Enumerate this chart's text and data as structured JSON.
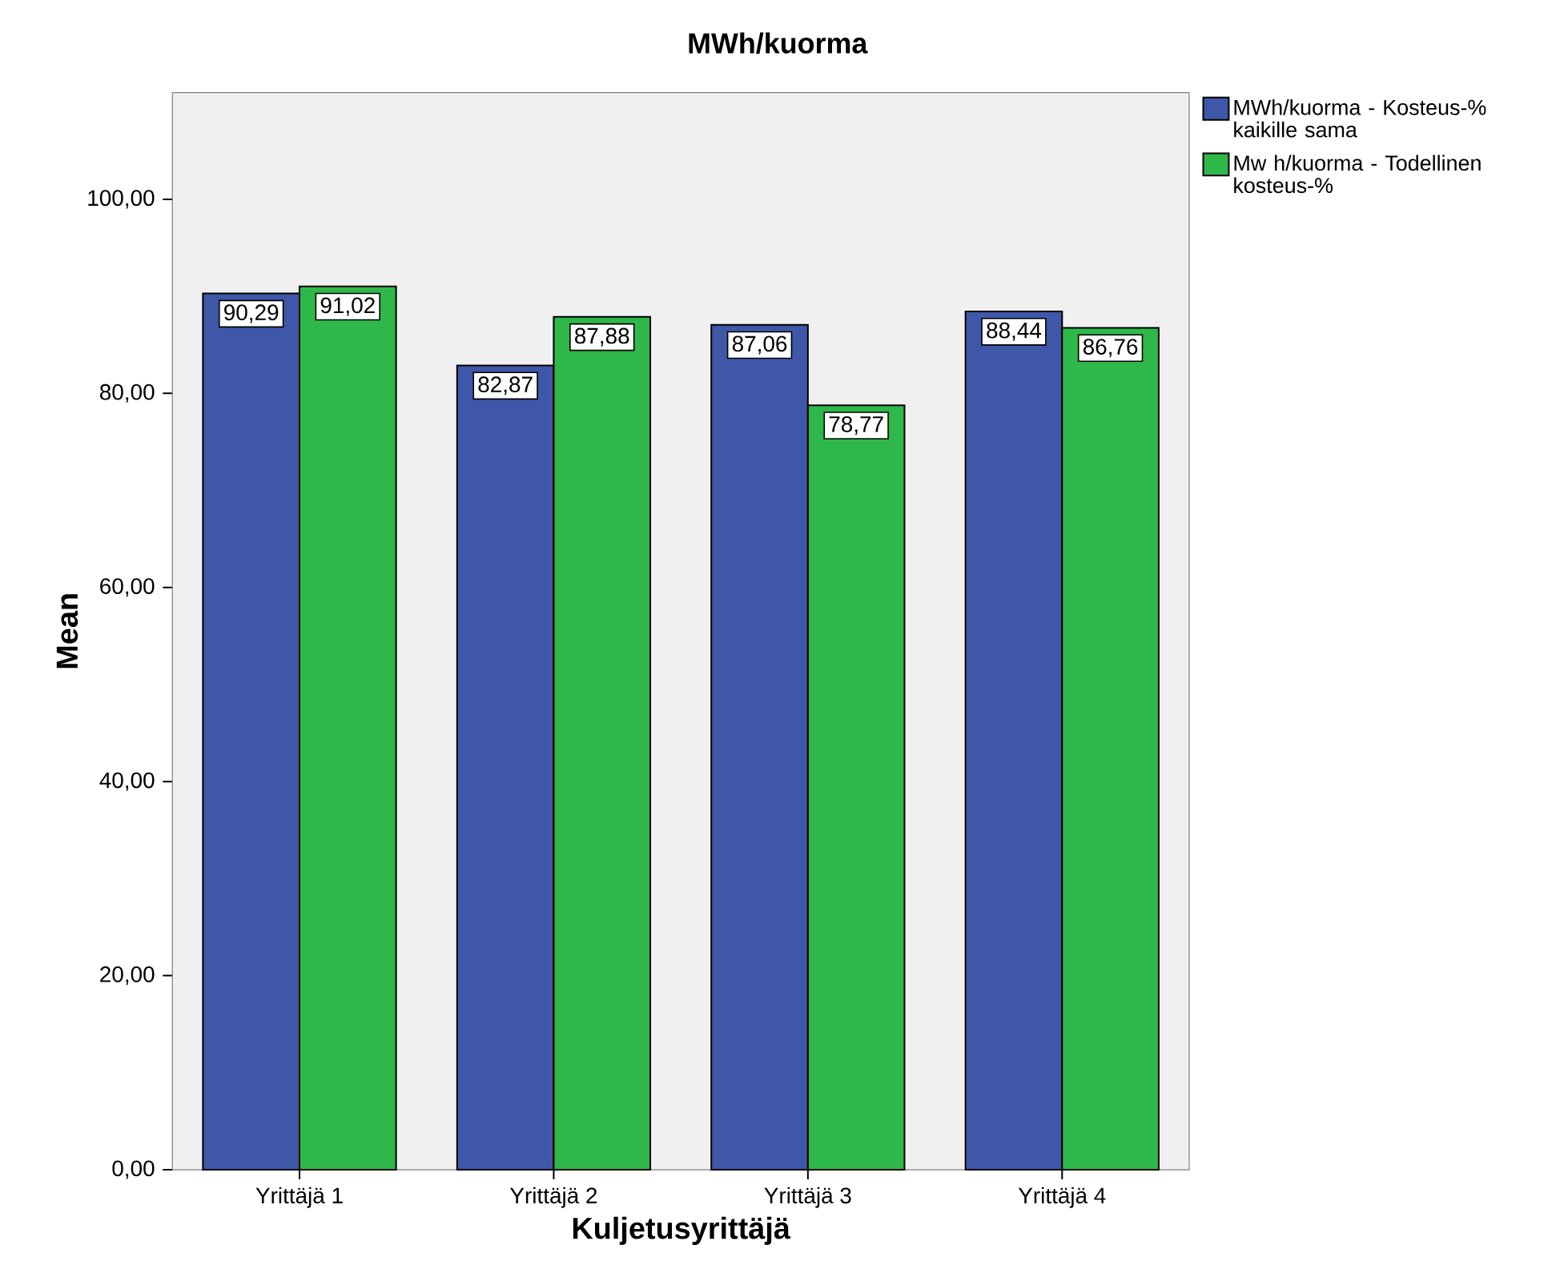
{
  "chart_data": {
    "type": "bar",
    "title": "MWh/kuorma",
    "xlabel": "Kuljetusyrittäjä",
    "ylabel": "Mean",
    "categories": [
      "Yrittäjä 1",
      "Yrittäjä 2",
      "Yrittäjä 3",
      "Yrittäjä 4"
    ],
    "series": [
      {
        "name": "MWh/kuorma - Kosteus-% kaikille sama",
        "color": "#3f57a8",
        "values": [
          90.29,
          82.87,
          87.06,
          88.44
        ],
        "value_labels": [
          "90,29",
          "82,87",
          "87,06",
          "88,44"
        ]
      },
      {
        "name": "Mw h/kuorma - Todellinen kosteus-%",
        "color": "#2fb84a",
        "values": [
          91.02,
          87.88,
          78.77,
          86.76
        ],
        "value_labels": [
          "91,02",
          "87,88",
          "78,77",
          "86,76"
        ]
      }
    ],
    "ylim": [
      0,
      111
    ],
    "yticks": [
      {
        "value": 0,
        "label": "0,00"
      },
      {
        "value": 20,
        "label": "20,00"
      },
      {
        "value": 40,
        "label": "40,00"
      },
      {
        "value": 60,
        "label": "60,00"
      },
      {
        "value": 80,
        "label": "80,00"
      },
      {
        "value": 100,
        "label": "100,00"
      }
    ],
    "grid": false,
    "legend": "top right"
  }
}
